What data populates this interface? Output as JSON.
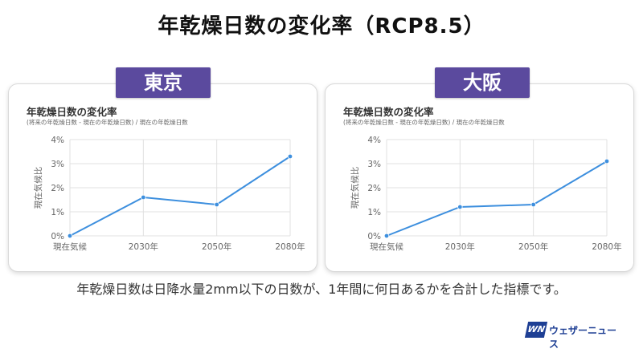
{
  "title": "年乾燥日数の変化率（RCP8.5）",
  "footnote": "年乾燥日数は日降水量2mm以下の日数が、1年間に何日あるかを合計した指標です。",
  "logo": {
    "text": "ウェザーニュース",
    "mark": "WN"
  },
  "colors": {
    "badge": "#5b4a9e",
    "line": "#3d8fde",
    "grid": "#e0e0e0"
  },
  "panels": [
    {
      "city": "東京",
      "title": "年乾燥日数の変化率",
      "subtitle": "(将来の年乾燥日数 - 現在の年乾燥日数) / 現在の年乾燥日数"
    },
    {
      "city": "大阪",
      "title": "年乾燥日数の変化率",
      "subtitle": "(将来の年乾燥日数 - 現在の年乾燥日数) / 現在の年乾燥日数"
    }
  ],
  "chart_data": [
    {
      "type": "line",
      "title": "年乾燥日数の変化率",
      "categories": [
        "現在気候",
        "2030年",
        "2050年",
        "2080年"
      ],
      "series": [
        {
          "values": [
            0,
            1.6,
            1.3,
            3.3
          ]
        }
      ],
      "ylabel": "現在気候比",
      "ylim": [
        0,
        4
      ],
      "yticks": [
        "0%",
        "1%",
        "2%",
        "3%",
        "4%"
      ],
      "grid": true
    },
    {
      "type": "line",
      "title": "年乾燥日数の変化率",
      "categories": [
        "現在気候",
        "2030年",
        "2050年",
        "2080年"
      ],
      "series": [
        {
          "values": [
            0,
            1.2,
            1.3,
            3.1
          ]
        }
      ],
      "ylabel": "現在気候比",
      "ylim": [
        0,
        4
      ],
      "yticks": [
        "0%",
        "1%",
        "2%",
        "3%",
        "4%"
      ],
      "grid": true
    }
  ]
}
